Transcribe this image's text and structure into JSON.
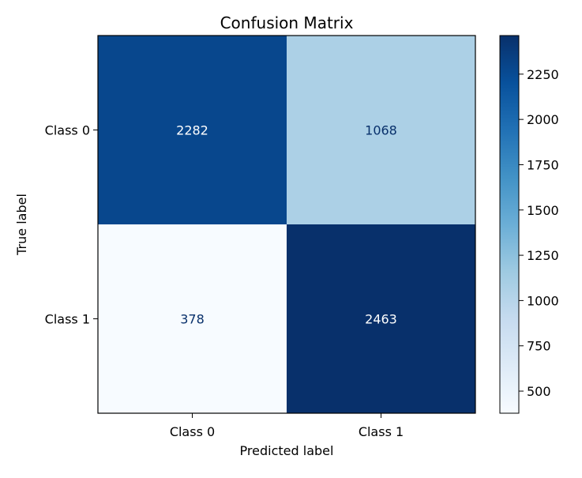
{
  "chart_data": {
    "type": "heatmap",
    "title": "Confusion Matrix",
    "xlabel": "Predicted label",
    "ylabel": "True label",
    "x_categories": [
      "Class 0",
      "Class 1"
    ],
    "y_categories": [
      "Class 0",
      "Class 1"
    ],
    "values": [
      [
        2282,
        1068
      ],
      [
        378,
        2463
      ]
    ],
    "colormap": "Blues",
    "colorbar": {
      "range": [
        378,
        2463
      ],
      "ticks": [
        500,
        750,
        1000,
        1250,
        1500,
        1750,
        2000,
        2250
      ],
      "tick_labels": [
        "500",
        "750",
        "1000",
        "1250",
        "1500",
        "1750",
        "2000",
        "2250"
      ]
    },
    "grid": false
  }
}
